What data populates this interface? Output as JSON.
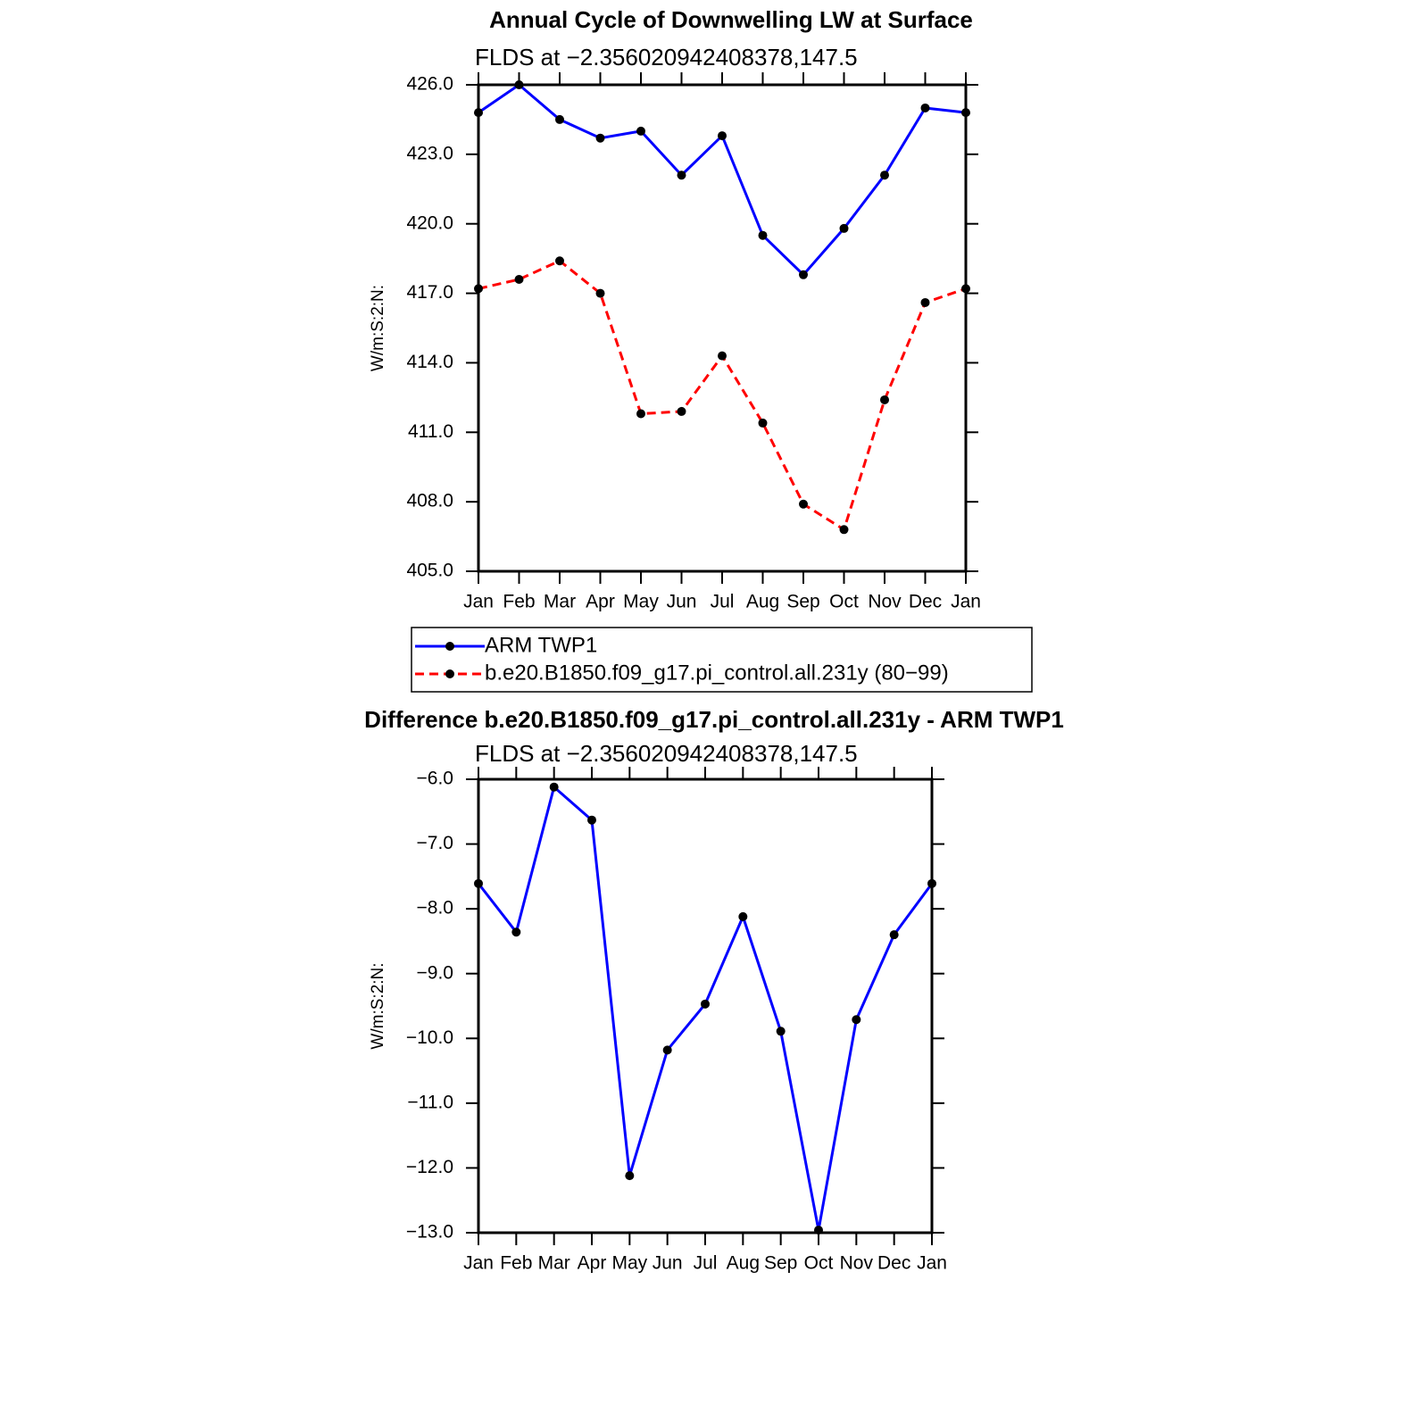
{
  "chart_data": [
    {
      "type": "line",
      "title": "Annual Cycle of Downwelling LW at Surface",
      "subtitle": "FLDS at −2.356020942408378,147.5",
      "y_label": "W/m:S:2:N:",
      "categories": [
        "Jan",
        "Feb",
        "Mar",
        "Apr",
        "May",
        "Jun",
        "Jul",
        "Aug",
        "Sep",
        "Oct",
        "Nov",
        "Dec",
        "Jan"
      ],
      "ylim": [
        405,
        426
      ],
      "yticks": [
        {
          "value": 405,
          "label": "405.0"
        },
        {
          "value": 408,
          "label": "408.0"
        },
        {
          "value": 411,
          "label": "411.0"
        },
        {
          "value": 414,
          "label": "414.0"
        },
        {
          "value": 417,
          "label": "417.0"
        },
        {
          "value": 420,
          "label": "420.0"
        },
        {
          "value": 423,
          "label": "423.0"
        },
        {
          "value": 426,
          "label": "426.0"
        }
      ],
      "legend": "bottom",
      "series": [
        {
          "name": "ARM TWP1",
          "color": "#0000ff",
          "linestyle": "solid",
          "values": [
            424.8,
            426.0,
            424.5,
            423.7,
            424.0,
            422.1,
            423.8,
            419.5,
            417.8,
            419.8,
            422.1,
            425.0,
            424.8
          ]
        },
        {
          "name": "b.e20.B1850.f09_g17.pi_control.all.231y (80−99)",
          "color": "#ff0000",
          "linestyle": "dashed",
          "values": [
            417.2,
            417.6,
            418.4,
            417.0,
            411.8,
            411.9,
            414.3,
            411.4,
            407.9,
            406.8,
            412.4,
            416.6,
            417.2
          ]
        }
      ]
    },
    {
      "type": "line",
      "title": "Difference b.e20.B1850.f09_g17.pi_control.all.231y - ARM TWP1",
      "subtitle": "FLDS at −2.356020942408378,147.5",
      "y_label": "W/m:S:2:N:",
      "categories": [
        "Jan",
        "Feb",
        "Mar",
        "Apr",
        "May",
        "Jun",
        "Jul",
        "Aug",
        "Sep",
        "Oct",
        "Nov",
        "Dec",
        "Jan"
      ],
      "ylim": [
        -13,
        -6
      ],
      "yticks": [
        {
          "value": -13,
          "label": "−13.0"
        },
        {
          "value": -12,
          "label": "−12.0"
        },
        {
          "value": -11,
          "label": "−11.0"
        },
        {
          "value": -10,
          "label": "−10.0"
        },
        {
          "value": -9,
          "label": "−9.0"
        },
        {
          "value": -8,
          "label": "−8.0"
        },
        {
          "value": -7,
          "label": "−7.0"
        },
        {
          "value": -6,
          "label": "−6.0"
        }
      ],
      "series": [
        {
          "color": "#0000ff",
          "linestyle": "solid",
          "values": [
            -7.61,
            -8.36,
            -6.12,
            -6.63,
            -12.12,
            -10.18,
            -9.47,
            -8.12,
            -9.89,
            -12.96,
            -9.71,
            -8.4,
            -7.61
          ]
        }
      ]
    }
  ]
}
